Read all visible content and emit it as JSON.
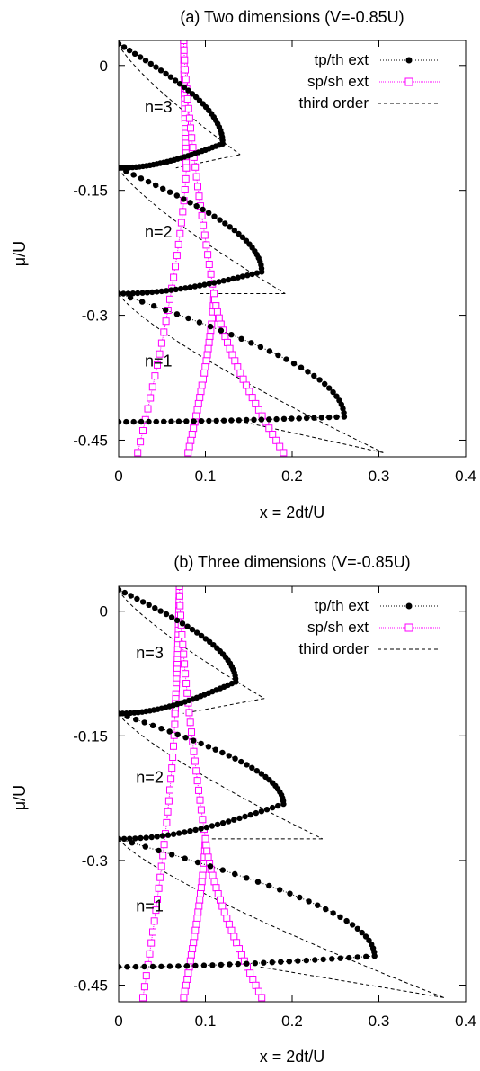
{
  "chart_data": [
    {
      "type": "scatter",
      "title": "(a) Two dimensions (V=-0.85U)",
      "xlabel": "x = 2dt/U",
      "ylabel": "μ/U",
      "xlim": [
        0,
        0.4
      ],
      "ylim": [
        -0.47,
        0.03
      ],
      "xticks": [
        "0",
        "0.1",
        "0.2",
        "0.3",
        "0.4"
      ],
      "xtick_values": [
        0,
        0.1,
        0.2,
        0.3,
        0.4
      ],
      "yticks": [
        "0",
        "-0.15",
        "-0.3",
        "-0.45"
      ],
      "ytick_values": [
        0,
        -0.15,
        -0.3,
        -0.45
      ],
      "legend": [
        "tp/th ext",
        "sp/sh ext",
        "third order"
      ],
      "legend_position": "top-right",
      "annotations": [
        {
          "text": "n=3",
          "x": 0.03,
          "y": -0.05
        },
        {
          "text": "n=2",
          "x": 0.03,
          "y": -0.2
        },
        {
          "text": "n=1",
          "x": 0.03,
          "y": -0.355
        }
      ],
      "series": [
        {
          "name": "tp/th ext",
          "color": "#000000",
          "marker": "filled-circle",
          "lobes": [
            {
              "tip_x": 0.12,
              "tip_y": -0.094,
              "top_y": 0.026,
              "bot_y": -0.123
            },
            {
              "tip_x": 0.165,
              "tip_y": -0.248,
              "top_y": -0.123,
              "bot_y": -0.274
            },
            {
              "tip_x": 0.26,
              "tip_y": -0.422,
              "top_y": -0.274,
              "bot_y": -0.428
            }
          ]
        },
        {
          "name": "sp/sh ext",
          "color": "#ff00ff",
          "marker": "open-square",
          "curves": [
            {
              "x_top": 0.075,
              "y_top": 0.03,
              "x_bot": 0.078,
              "y_bot": -0.123
            },
            {
              "x_top": 0.078,
              "y_top": -0.123,
              "x_bot": 0.022,
              "y_bot": -0.465
            },
            {
              "x_top": 0.075,
              "y_top": 0.03,
              "x_bot": 0.11,
              "y_bot": -0.274
            },
            {
              "x_top": 0.11,
              "y_top": -0.274,
              "x_bot": 0.08,
              "y_bot": -0.465
            },
            {
              "x_top": 0.11,
              "y_top": -0.274,
              "x_bot": 0.19,
              "y_bot": -0.465
            }
          ]
        },
        {
          "name": "third order",
          "color": "#000000",
          "style": "dashed",
          "tips": [
            {
              "x": 0.14,
              "y": -0.107
            },
            {
              "x": 0.192,
              "y": -0.274
            },
            {
              "x": 0.305,
              "y": -0.465
            }
          ]
        }
      ]
    },
    {
      "type": "scatter",
      "title": "(b) Three dimensions (V=-0.85U)",
      "xlabel": "x = 2dt/U",
      "ylabel": "μ/U",
      "xlim": [
        0,
        0.4
      ],
      "ylim": [
        -0.47,
        0.03
      ],
      "xticks": [
        "0",
        "0.1",
        "0.2",
        "0.3",
        "0.4"
      ],
      "xtick_values": [
        0,
        0.1,
        0.2,
        0.3,
        0.4
      ],
      "yticks": [
        "0",
        "-0.15",
        "-0.3",
        "-0.45"
      ],
      "ytick_values": [
        0,
        -0.15,
        -0.3,
        -0.45
      ],
      "legend": [
        "tp/th ext",
        "sp/sh ext",
        "third order"
      ],
      "legend_position": "top-right",
      "annotations": [
        {
          "text": "n=3",
          "x": 0.02,
          "y": -0.05
        },
        {
          "text": "n=2",
          "x": 0.02,
          "y": -0.2
        },
        {
          "text": "n=1",
          "x": 0.02,
          "y": -0.355
        }
      ],
      "series": [
        {
          "name": "tp/th ext",
          "color": "#000000",
          "marker": "filled-circle",
          "lobes": [
            {
              "tip_x": 0.135,
              "tip_y": -0.085,
              "top_y": 0.026,
              "bot_y": -0.123
            },
            {
              "tip_x": 0.19,
              "tip_y": -0.232,
              "top_y": -0.123,
              "bot_y": -0.274
            },
            {
              "tip_x": 0.295,
              "tip_y": -0.415,
              "top_y": -0.274,
              "bot_y": -0.428
            }
          ]
        },
        {
          "name": "sp/sh ext",
          "color": "#ff00ff",
          "marker": "open-square",
          "curves": [
            {
              "x_top": 0.07,
              "y_top": 0.03,
              "x_bot": 0.065,
              "y_bot": -0.123
            },
            {
              "x_top": 0.065,
              "y_top": -0.123,
              "x_bot": 0.028,
              "y_bot": -0.465
            },
            {
              "x_top": 0.07,
              "y_top": 0.03,
              "x_bot": 0.1,
              "y_bot": -0.274
            },
            {
              "x_top": 0.1,
              "y_top": -0.274,
              "x_bot": 0.075,
              "y_bot": -0.465
            },
            {
              "x_top": 0.1,
              "y_top": -0.274,
              "x_bot": 0.165,
              "y_bot": -0.465
            }
          ]
        },
        {
          "name": "third order",
          "color": "#000000",
          "style": "dashed",
          "tips": [
            {
              "x": 0.168,
              "y": -0.105
            },
            {
              "x": 0.235,
              "y": -0.274
            },
            {
              "x": 0.375,
              "y": -0.465
            }
          ]
        }
      ]
    }
  ]
}
